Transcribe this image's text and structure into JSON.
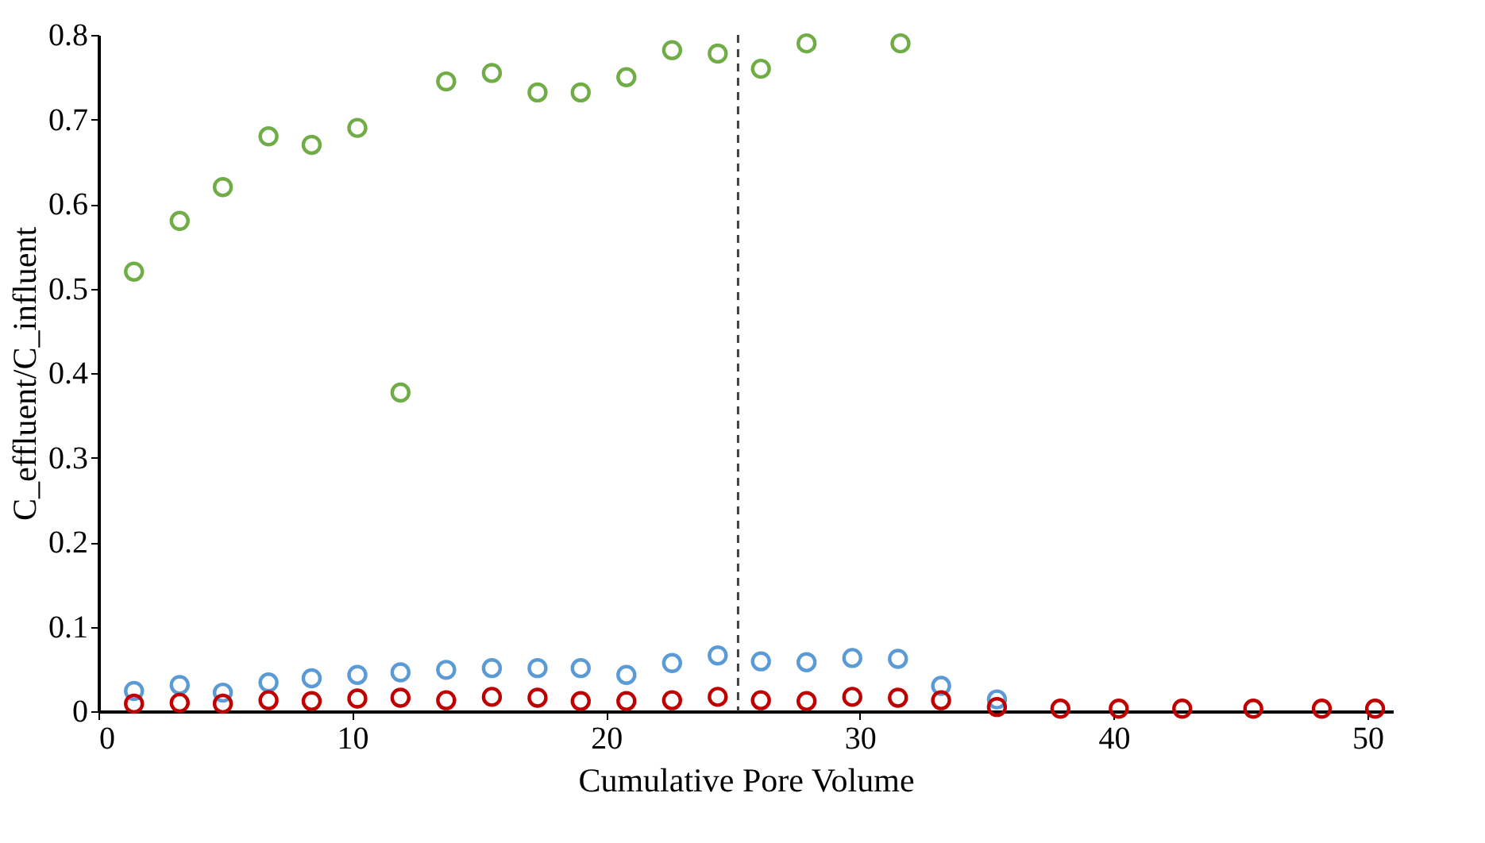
{
  "chart_data": {
    "type": "scatter",
    "xlabel": "Cumulative Pore Volume",
    "ylabel": "C_effluent/C_influent",
    "xlim": [
      0,
      51
    ],
    "xticks": [
      0,
      10,
      20,
      30,
      40,
      50
    ],
    "ylim": [
      0,
      0.8
    ],
    "yticks": [
      0,
      0.1,
      0.2,
      0.3,
      0.4,
      0.5,
      0.6,
      0.7,
      0.8
    ],
    "grid": false,
    "marker": "circle",
    "series": [
      {
        "color": "#70ad47",
        "x": [
          1.4,
          3.2,
          4.9,
          6.7,
          8.4,
          10.2,
          11.9,
          13.7,
          15.5,
          17.3,
          19.0,
          20.8,
          22.6,
          24.4,
          26.1,
          27.9,
          31.6
        ],
        "values": [
          0.52,
          0.58,
          0.62,
          0.68,
          0.67,
          0.69,
          0.377,
          0.745,
          0.755,
          0.732,
          0.732,
          0.75,
          0.782,
          0.778,
          0.76,
          0.79,
          0.79
        ]
      },
      {
        "color": "#5b9bd5",
        "x": [
          1.4,
          3.2,
          4.9,
          6.7,
          8.4,
          10.2,
          11.9,
          13.7,
          15.5,
          17.3,
          19.0,
          20.8,
          22.6,
          24.4,
          26.1,
          27.9,
          29.7,
          31.5,
          33.2,
          35.4
        ],
        "values": [
          0.024,
          0.031,
          0.022,
          0.034,
          0.039,
          0.043,
          0.046,
          0.049,
          0.051,
          0.051,
          0.051,
          0.043,
          0.057,
          0.066,
          0.059,
          0.058,
          0.063,
          0.062,
          0.03,
          0.014
        ]
      },
      {
        "color": "#c00000",
        "x": [
          1.4,
          3.2,
          4.9,
          6.7,
          8.4,
          10.2,
          11.9,
          13.7,
          15.5,
          17.3,
          19.0,
          20.8,
          22.6,
          24.4,
          26.1,
          27.9,
          29.7,
          31.5,
          33.2,
          35.4,
          37.9,
          40.2,
          42.7,
          45.5,
          48.2,
          50.3
        ],
        "values": [
          0.009,
          0.01,
          0.009,
          0.013,
          0.012,
          0.015,
          0.016,
          0.013,
          0.017,
          0.016,
          0.012,
          0.012,
          0.013,
          0.017,
          0.013,
          0.012,
          0.017,
          0.016,
          0.013,
          0.005,
          0.003,
          0.003,
          0.003,
          0.003,
          0.003,
          0.003
        ]
      }
    ],
    "ref_lines": [
      {
        "axis": "x",
        "value": 25.2,
        "color": "#404040",
        "line_style": "dashed"
      }
    ]
  }
}
